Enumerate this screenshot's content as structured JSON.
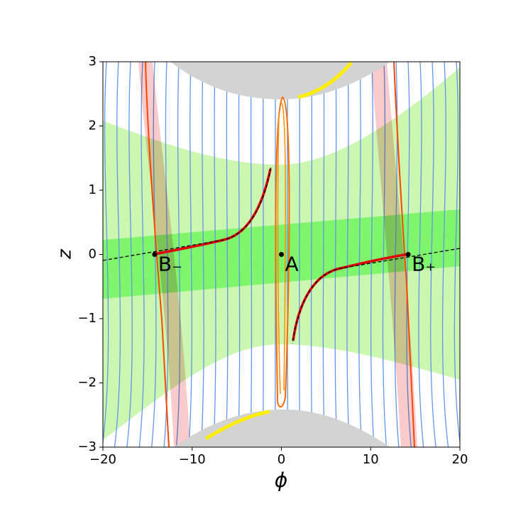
{
  "chart_data": {
    "type": "scatter",
    "xlabel": "ϕ",
    "ylabel": "z",
    "x": [
      0,
      -14.2,
      14.2
    ],
    "y": [
      0,
      0,
      0
    ],
    "point_labels": [
      "A",
      "B₋",
      "B₊"
    ],
    "color": "#000000",
    "xlim": [
      -20,
      20
    ],
    "xticks": [
      {
        "value": -20,
        "label": "−20"
      },
      {
        "value": -10,
        "label": "−10"
      },
      0,
      10,
      20
    ],
    "ylim": [
      -3,
      3
    ],
    "yticks": [
      {
        "value": -3,
        "label": "−3"
      },
      {
        "value": -2,
        "label": "−2"
      },
      {
        "value": -1,
        "label": "−1"
      },
      0,
      1,
      2,
      3
    ]
  }
}
